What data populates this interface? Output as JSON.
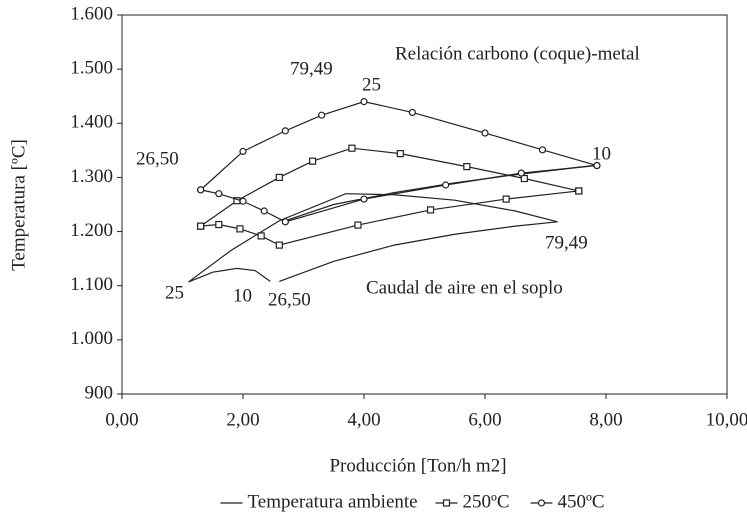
{
  "chart_data": {
    "type": "line",
    "xlabel": "Producción [Ton/h m2]",
    "ylabel": "Temperatura [ºC]",
    "xlim": [
      0,
      10
    ],
    "ylim": [
      900,
      1600
    ],
    "xticks": [
      {
        "value": 0,
        "label": "0,00"
      },
      {
        "value": 2,
        "label": "2,00"
      },
      {
        "value": 4,
        "label": "4,00"
      },
      {
        "value": 6,
        "label": "6,00"
      },
      {
        "value": 8,
        "label": "8,00"
      },
      {
        "value": 10,
        "label": "10,00"
      }
    ],
    "yticks": [
      900,
      {
        "value": 1000,
        "label": "1.000"
      },
      {
        "value": 1100,
        "label": "1.100"
      },
      {
        "value": 1200,
        "label": "1.200"
      },
      {
        "value": 1300,
        "label": "1.300"
      },
      {
        "value": 1400,
        "label": "1.400"
      },
      {
        "value": 1500,
        "label": "1.500"
      },
      {
        "value": 1600,
        "label": "1.600"
      }
    ],
    "annotations": [
      "Relación carbono (coque)-metal",
      "79,49",
      "25",
      "26,50",
      "10",
      "79,49",
      "Caudal de aire en el soplo",
      "25",
      "10",
      "26,50"
    ],
    "legend": "bottom",
    "series": [
      {
        "name": "Temperatura ambiente",
        "color": "#222",
        "marker": "none",
        "x": [
          1.1,
          1.5,
          1.9,
          2.2,
          2.45,
          null,
          2.6,
          3.5,
          4.5,
          5.5,
          6.5,
          7.2,
          null,
          1.1,
          1.8,
          2.6,
          3.7,
          4.5,
          5.5,
          6.5,
          7.2,
          null,
          2.7,
          3.5,
          4.5,
          5.5,
          6.5,
          7.8
        ],
        "values": [
          1107,
          1125,
          1132,
          1128,
          1108,
          null,
          1108,
          1145,
          1175,
          1195,
          1210,
          1218,
          null,
          1107,
          1165,
          1220,
          1270,
          1268,
          1258,
          1238,
          1218,
          null,
          1220,
          1250,
          1272,
          1290,
          1305,
          1322
        ]
      },
      {
        "name": "250ºC",
        "color": "#222",
        "marker": "square",
        "x": [
          1.3,
          1.6,
          1.95,
          2.3,
          2.6,
          3.9,
          5.1,
          6.35,
          7.55,
          null,
          1.3,
          1.9,
          2.6,
          3.15,
          3.8,
          4.6,
          5.7,
          6.65,
          7.55
        ],
        "values": [
          1210,
          1213,
          1205,
          1192,
          1175,
          1212,
          1240,
          1260,
          1275,
          null,
          1210,
          1257,
          1300,
          1330,
          1354,
          1344,
          1320,
          1298,
          1275
        ]
      },
      {
        "name": "450ºC",
        "color": "#222",
        "marker": "circle",
        "x": [
          1.3,
          2.0,
          2.7,
          3.3,
          4.0,
          4.8,
          6.0,
          6.95,
          7.85,
          null,
          1.3,
          1.6,
          2.0,
          2.35,
          2.7,
          4.0,
          5.35,
          6.6,
          7.85
        ],
        "values": [
          1277,
          1348,
          1386,
          1415,
          1440,
          1420,
          1382,
          1351,
          1322,
          null,
          1277,
          1270,
          1256,
          1238,
          1218,
          1260,
          1286,
          1308,
          1322
        ]
      }
    ]
  }
}
